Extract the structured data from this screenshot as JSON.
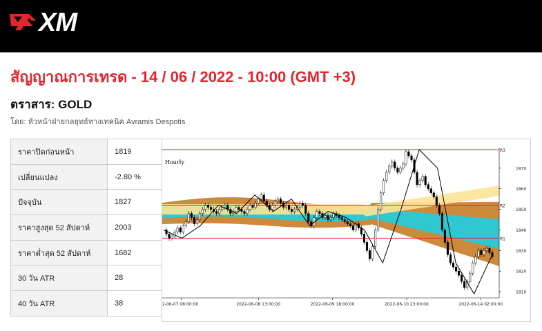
{
  "header": {
    "logo_text": "XM",
    "brand_color": "#e3262e",
    "background_color": "#000000"
  },
  "headline": "สัญญาณการเทรด - 14 / 06 / 2022 - 10:00 (GMT +3)",
  "instrument": "ตราสาร: GOLD",
  "byline": "โดย: หัวหน้าฝ่ายกลยุทธ์ทางเทคนิค Avramis Despotis",
  "stats": [
    {
      "label": "ราคาปิดก่อนหน้า",
      "value": "1819"
    },
    {
      "label": "เปลี่ยนแปลง",
      "value": "-2.80 %"
    },
    {
      "label": "ปัจจุบัน",
      "value": "1827"
    },
    {
      "label": "ราคาสูงสุด 52 สัปดาห์",
      "value": "2003"
    },
    {
      "label": "ราคาต่ำสุด 52 สัปดาห์",
      "value": "1682"
    },
    {
      "label": "30 วัน ATR",
      "value": "28"
    },
    {
      "label": "40 วัน ATR",
      "value": "38"
    }
  ],
  "chart_data": {
    "type": "line",
    "title": "Hourly",
    "ylim": [
      1807,
      1880
    ],
    "yticks": [
      1810,
      1820,
      1830,
      1840,
      1850,
      1860,
      1870
    ],
    "xtick_labels": [
      "2-06-07 08:00:00",
      "2022-06-08 13:00:00",
      "2022-06-09 18:00:00",
      "2022-06-10 23:00:00",
      "2022-06-14 02:00:00"
    ],
    "levels": [
      {
        "name": "R3",
        "value": 1879,
        "color": "#e3262e"
      },
      {
        "name": "R2",
        "value": 1852,
        "color": "#e3262e"
      },
      {
        "name": "R1",
        "value": 1836,
        "color": "#e3262e"
      }
    ],
    "series": [
      {
        "values": [
          1840,
          1838,
          1836,
          1837,
          1839,
          1841,
          1839,
          1842,
          1844,
          1848,
          1846,
          1843,
          1845,
          1848,
          1850,
          1852,
          1851,
          1850,
          1849,
          1848,
          1850,
          1851,
          1852,
          1850,
          1848,
          1849,
          1851,
          1850,
          1849,
          1848,
          1850,
          1852,
          1851,
          1853,
          1855,
          1857,
          1854,
          1852,
          1850,
          1852,
          1854,
          1855,
          1853,
          1851,
          1852,
          1850,
          1849,
          1850,
          1851,
          1853,
          1852,
          1848,
          1844,
          1842,
          1846,
          1849,
          1848,
          1846,
          1847,
          1845,
          1846,
          1848,
          1847,
          1846,
          1845,
          1844,
          1843,
          1842,
          1840,
          1843,
          1841,
          1838,
          1834,
          1830,
          1826,
          1832,
          1840,
          1850,
          1858,
          1864,
          1868,
          1871,
          1873,
          1870,
          1868,
          1870,
          1872,
          1878,
          1876,
          1874,
          1868,
          1862,
          1864,
          1866,
          1862,
          1860,
          1858,
          1856,
          1852,
          1848,
          1840,
          1834,
          1828,
          1824,
          1822,
          1820,
          1818,
          1815,
          1812,
          1815,
          1819,
          1824,
          1827,
          1830,
          1828,
          1830,
          1831,
          1829,
          1827
        ]
      },
      {
        "name": "zigzag",
        "values": [
          1840,
          1836,
          1842,
          1852,
          1848,
          1857,
          1849,
          1855,
          1842,
          1849,
          1846,
          1840,
          1824,
          1850,
          1879,
          1870,
          1824,
          1809,
          1828
        ]
      }
    ]
  },
  "colors": {
    "table_key_bg": "#f2f2f2",
    "grid_border": "#cccccc",
    "band_yellow": "#fbe496",
    "band_orange": "#cd8a3c",
    "band_cyan": "#2fc7d0",
    "level_red": "#e3262e"
  }
}
